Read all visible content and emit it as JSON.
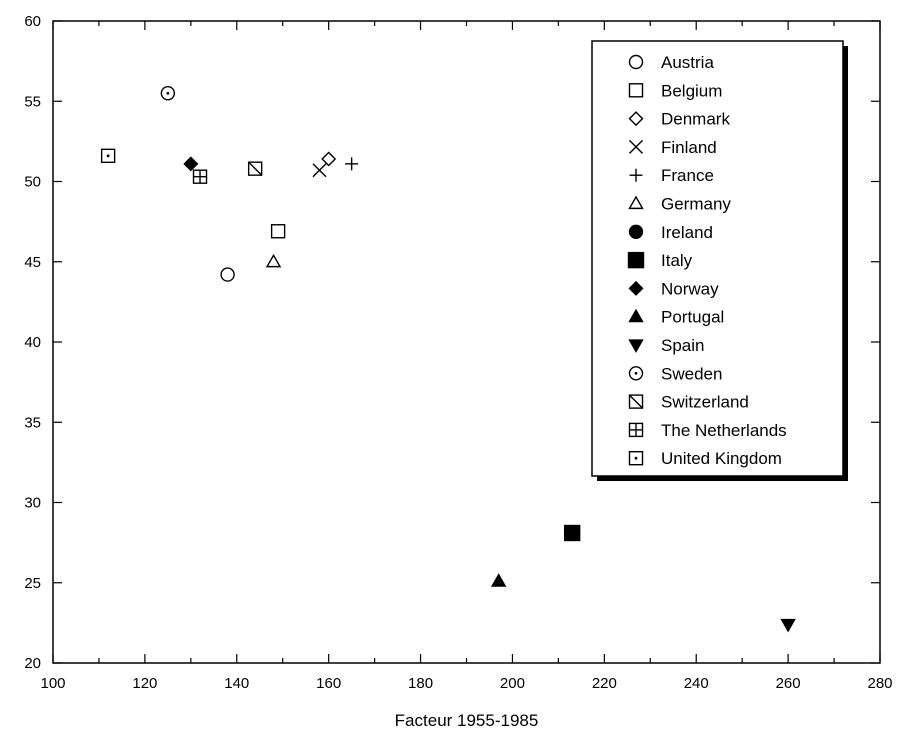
{
  "chart_data": {
    "type": "scatter",
    "title": "",
    "xlabel": "Facteur 1955-1985",
    "ylabel": "",
    "xlim": [
      100,
      280
    ],
    "ylim": [
      20,
      60
    ],
    "x_ticks": [
      100,
      120,
      140,
      160,
      180,
      200,
      220,
      240,
      260,
      280
    ],
    "y_ticks": [
      20,
      25,
      30,
      35,
      40,
      45,
      50,
      55,
      60
    ],
    "grid": false,
    "legend_position": "top-right",
    "series": [
      {
        "name": "Austria",
        "marker": "circle-open",
        "points": [
          {
            "x": 138,
            "y": 44.2
          }
        ]
      },
      {
        "name": "Belgium",
        "marker": "square-open",
        "points": [
          {
            "x": 149,
            "y": 46.9
          }
        ]
      },
      {
        "name": "Denmark",
        "marker": "diamond-open",
        "points": [
          {
            "x": 160,
            "y": 51.4
          }
        ]
      },
      {
        "name": "Finland",
        "marker": "x-cross",
        "points": [
          {
            "x": 158,
            "y": 50.7
          }
        ]
      },
      {
        "name": "France",
        "marker": "plus",
        "points": [
          {
            "x": 165,
            "y": 51.1
          }
        ]
      },
      {
        "name": "Germany",
        "marker": "triangle-up-open",
        "points": [
          {
            "x": 148,
            "y": 45.0
          }
        ]
      },
      {
        "name": "Ireland",
        "marker": "circle-filled",
        "points": []
      },
      {
        "name": "Italy",
        "marker": "square-filled",
        "points": [
          {
            "x": 213,
            "y": 28.1
          }
        ]
      },
      {
        "name": "Norway",
        "marker": "diamond-filled",
        "points": [
          {
            "x": 130,
            "y": 51.1
          }
        ]
      },
      {
        "name": "Portugal",
        "marker": "triangle-up-filled",
        "points": [
          {
            "x": 197,
            "y": 25.1
          }
        ]
      },
      {
        "name": "Spain",
        "marker": "triangle-down-filled",
        "points": [
          {
            "x": 260,
            "y": 22.4
          }
        ]
      },
      {
        "name": "Sweden",
        "marker": "circle-dot",
        "points": [
          {
            "x": 125,
            "y": 55.5
          }
        ]
      },
      {
        "name": "Switzerland",
        "marker": "square-slash",
        "points": [
          {
            "x": 144,
            "y": 50.8
          }
        ]
      },
      {
        "name": "The Netherlands",
        "marker": "square-cross",
        "points": [
          {
            "x": 132,
            "y": 50.3
          }
        ]
      },
      {
        "name": "United Kingdom",
        "marker": "square-dot",
        "points": [
          {
            "x": 112,
            "y": 51.6
          }
        ]
      }
    ]
  }
}
